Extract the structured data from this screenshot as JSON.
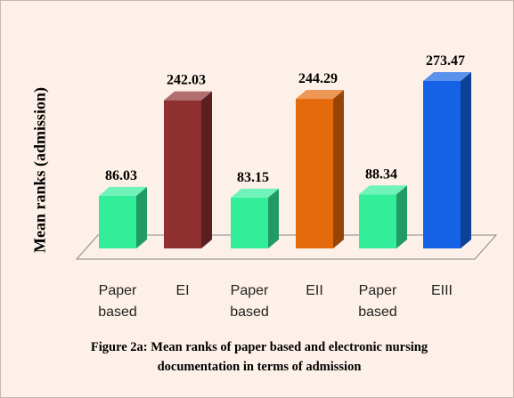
{
  "chart_data": {
    "type": "bar3d",
    "y_label": "Mean  ranks  (admission)",
    "categories": [
      "Paper based",
      "EI",
      "Paper based",
      "EII",
      "Paper based",
      "EIII"
    ],
    "values": [
      86.03,
      242.03,
      83.15,
      244.29,
      88.34,
      273.47
    ],
    "colors": [
      "#33ee99",
      "#8e3030",
      "#33ee99",
      "#e56a0c",
      "#33ee99",
      "#1662e6"
    ],
    "caption": "Figure 2a: Mean ranks of paper based and electronic nursing documentation in terms of admission"
  }
}
